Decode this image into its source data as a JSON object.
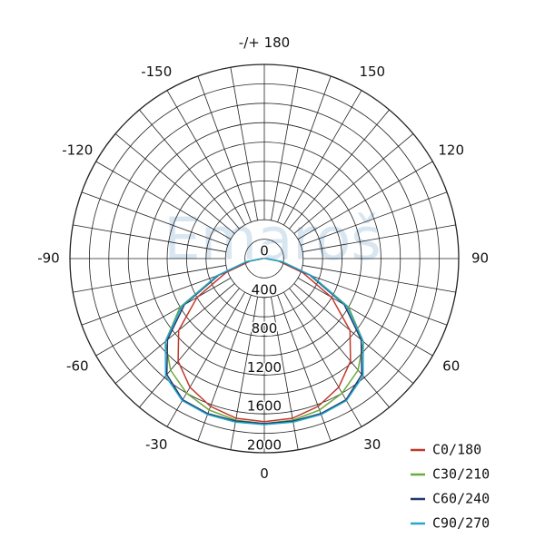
{
  "chart_data": {
    "type": "polar",
    "watermark": "Emaroš",
    "theta": [
      -90,
      -80,
      -70,
      -60,
      -50,
      -40,
      -30,
      -20,
      -10,
      0,
      10,
      20,
      30,
      40,
      50,
      60,
      70,
      80,
      90
    ],
    "thetaticks": [
      0,
      30,
      60,
      90,
      120,
      150,
      {
        "value": 180,
        "label": "-/+ 180"
      },
      -150,
      -120,
      -90,
      -60,
      -30
    ],
    "rlim": [
      0,
      2000
    ],
    "rticks": [
      0,
      400,
      800,
      1200,
      1600,
      2000
    ],
    "series": [
      {
        "name": "C0/180",
        "color": "#c0392b",
        "values": [
          20,
          150,
          420,
          800,
          1150,
          1380,
          1530,
          1620,
          1670,
          1680,
          1670,
          1620,
          1530,
          1380,
          1150,
          800,
          420,
          150,
          20
        ]
      },
      {
        "name": "C30/210",
        "color": "#6aab3a",
        "values": [
          20,
          180,
          520,
          1000,
          1330,
          1500,
          1600,
          1660,
          1690,
          1700,
          1690,
          1660,
          1600,
          1500,
          1330,
          1000,
          520,
          180,
          20
        ]
      },
      {
        "name": "C60/240",
        "color": "#1f3a6e",
        "values": [
          20,
          180,
          500,
          950,
          1300,
          1560,
          1680,
          1700,
          1700,
          1700,
          1700,
          1700,
          1680,
          1560,
          1300,
          950,
          500,
          180,
          20
        ]
      },
      {
        "name": "C90/270",
        "color": "#2aa6c9",
        "values": [
          20,
          190,
          520,
          980,
          1330,
          1580,
          1690,
          1710,
          1710,
          1710,
          1710,
          1710,
          1690,
          1580,
          1330,
          980,
          520,
          190,
          20
        ]
      }
    ]
  }
}
